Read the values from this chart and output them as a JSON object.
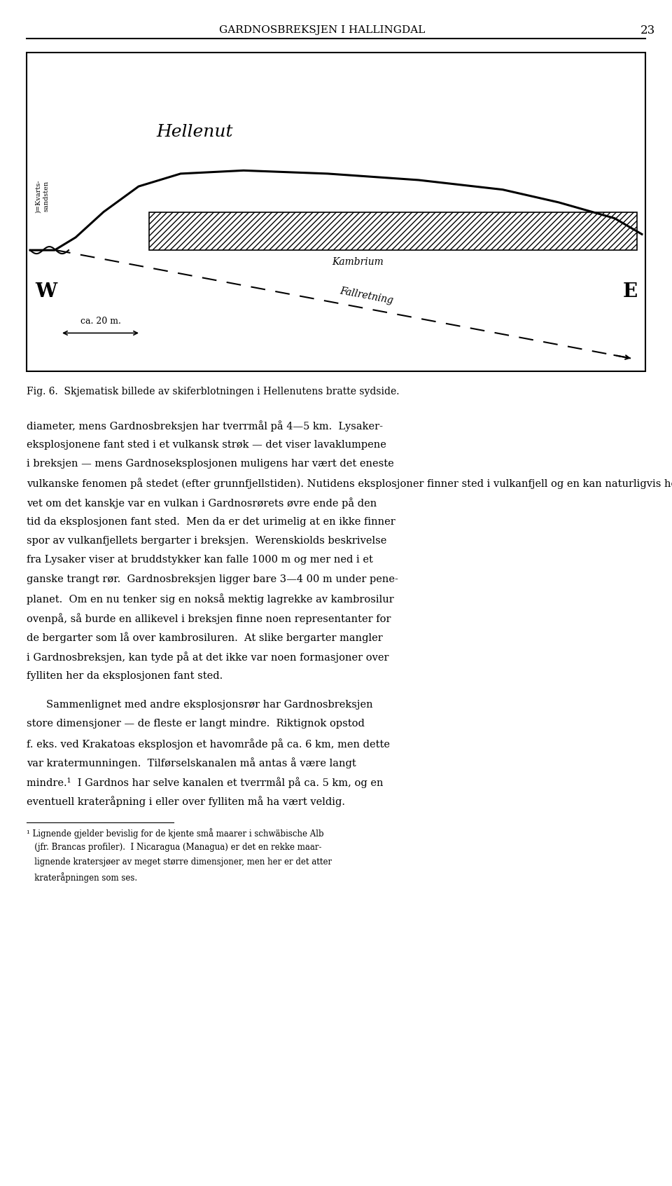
{
  "page_header": "GARDNOSBREKSJEN I HALLINGDAL",
  "page_number": "23",
  "fig_caption": "Fig. 6.  Skjematisk billede av skiferblotningen i Hellenutens bratte sydside.",
  "diagram": {
    "hellenut_label": "Hellenut",
    "kambrium_label": "Kambrium",
    "fallretning_label": "Fallretning",
    "W_label": "W",
    "E_label": "E",
    "kvarts_label": ")=Kvarts-\nsandsten"
  },
  "para1_lines": [
    "diameter, mens Gardnosbreksjen har tverrmål på 4—5 km.  Lysaker-",
    "eksplosjonene fant sted i et vulkansk strøk — det viser lavaklumpene",
    "i breksjen — mens Gardnoseksplosjonen muligens har vært det eneste",
    "vulkanske fenomen på stedet (efter grunnfjellstiden). Nutidens eksplosjoner finner sted i vulkanfjell og en kan naturligvis hevde at ingen",
    "vet om det kanskje var en vulkan i Gardnosrørets øvre ende på den",
    "tid da eksplosjonen fant sted.  Men da er det urimelig at en ikke finner",
    "spor av vulkanfjellets bergarter i breksjen.  Werenskiolds beskrivelse",
    "fra Lysaker viser at bruddstykker kan falle 1000 m og mer ned i et",
    "ganske trangt rør.  Gardnosbreksjen ligger bare 3—4 00 m under pene-",
    "planet.  Om en nu tenker sig en nokså mektig lagrekke av kambrosilur",
    "ovenpå, så burde en allikevel i breksjen finne noen representanter for",
    "de bergarter som lå over kambrosiluren.  At slike bergarter mangler",
    "i Gardnosbreksjen, kan tyde på at det ikke var noen formasjoner over",
    "fylliten her da eksplosjonen fant sted."
  ],
  "para2_lines": [
    "Sammenlignet med andre eksplosjonsrør har Gardnosbreksjen",
    "store dimensjoner — de fleste er langt mindre.  Riktignok opstod",
    "f. eks. ved Krakatoas eksplosjon et havområde på ca. 6 km, men dette",
    "var kratermunningen.  Tilførselskanalen må antas å være langt",
    "mindre.¹  I Gardnos har selve kanalen et tverrmål på ca. 5 km, og en",
    "eventuell krateråpning i eller over fylliten må ha vært veldig."
  ],
  "footnote_lines": [
    "¹ Lignende gjelder bevislig for de kjente små maarer i schwäbische Alb",
    "   (jfr. Brancas profiler).  I Nicaragua (Managua) er det en rekke maar-",
    "   lignende kratersjøer av meget større dimensjoner, men her er det atter",
    "   krateråpningen som ses."
  ],
  "background_color": "#ffffff",
  "text_color": "#000000"
}
